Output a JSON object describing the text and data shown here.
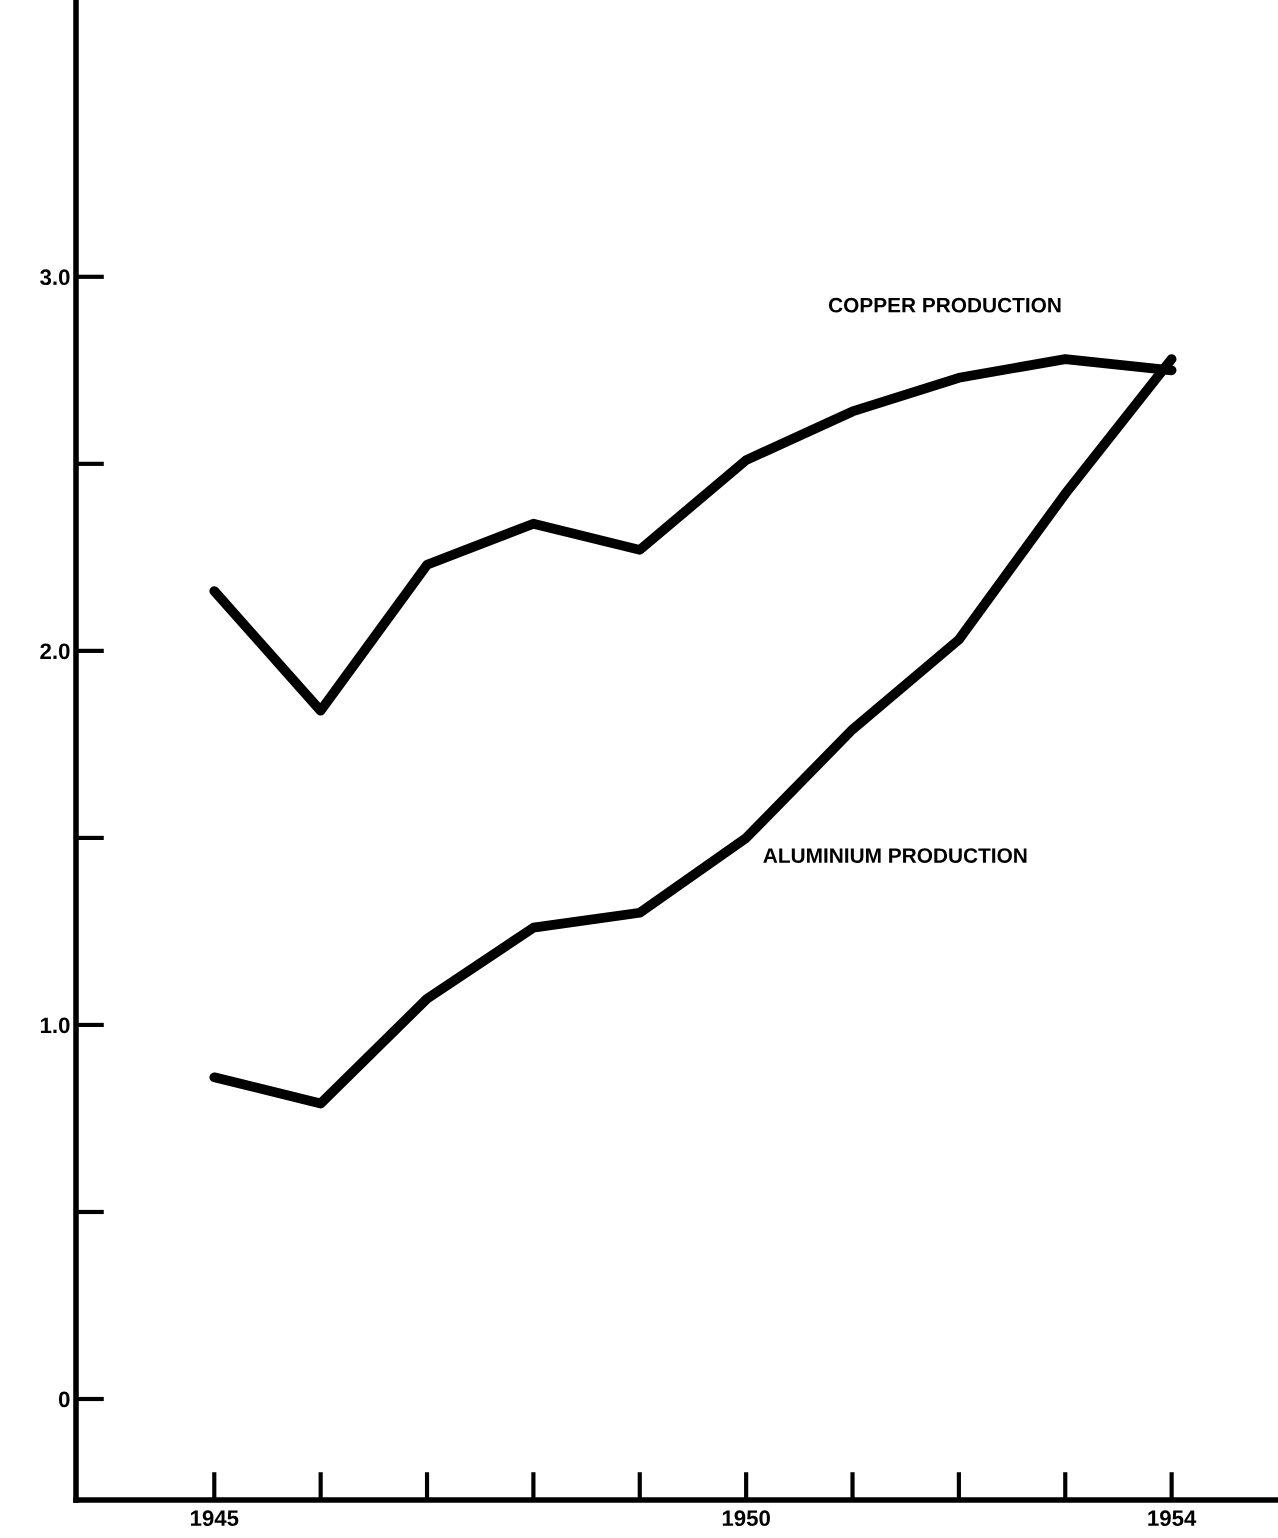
{
  "chart_data": {
    "type": "line",
    "x": [
      1945,
      1946,
      1947,
      1948,
      1949,
      1950,
      1951,
      1952,
      1953,
      1954
    ],
    "series": [
      {
        "name": "COPPER PRODUCTION",
        "color": "#000000",
        "values": [
          2.16,
          1.84,
          2.23,
          2.34,
          2.27,
          2.51,
          2.64,
          2.73,
          2.78,
          2.75
        ]
      },
      {
        "name": "ALUMINIUM PRODUCTION",
        "color": "#000000",
        "values": [
          0.86,
          0.79,
          1.07,
          1.26,
          1.3,
          1.5,
          1.79,
          2.03,
          2.42,
          2.78
        ]
      }
    ],
    "xlim": [
      1943.7,
      1955.0
    ],
    "ylim": [
      -0.27,
      3.74
    ],
    "xticks": [
      1945,
      {
        "value": 1946,
        "label": null
      },
      {
        "value": 1947,
        "label": null
      },
      {
        "value": 1948,
        "label": null
      },
      {
        "value": 1949,
        "label": null
      },
      1950,
      {
        "value": 1951,
        "label": null
      },
      {
        "value": 1952,
        "label": null
      },
      {
        "value": 1953,
        "label": null
      },
      1954
    ],
    "yticks": [
      0,
      {
        "value": 0.5,
        "label": null
      },
      {
        "value": 1.0,
        "label": "1.0"
      },
      {
        "value": 1.5,
        "label": null
      },
      {
        "value": 2.0,
        "label": "2.0"
      },
      {
        "value": 2.5,
        "label": null
      },
      {
        "value": 3.0,
        "label": "3.0"
      }
    ],
    "grid": false,
    "legend": false,
    "marker": "none",
    "line_style": "solid"
  }
}
